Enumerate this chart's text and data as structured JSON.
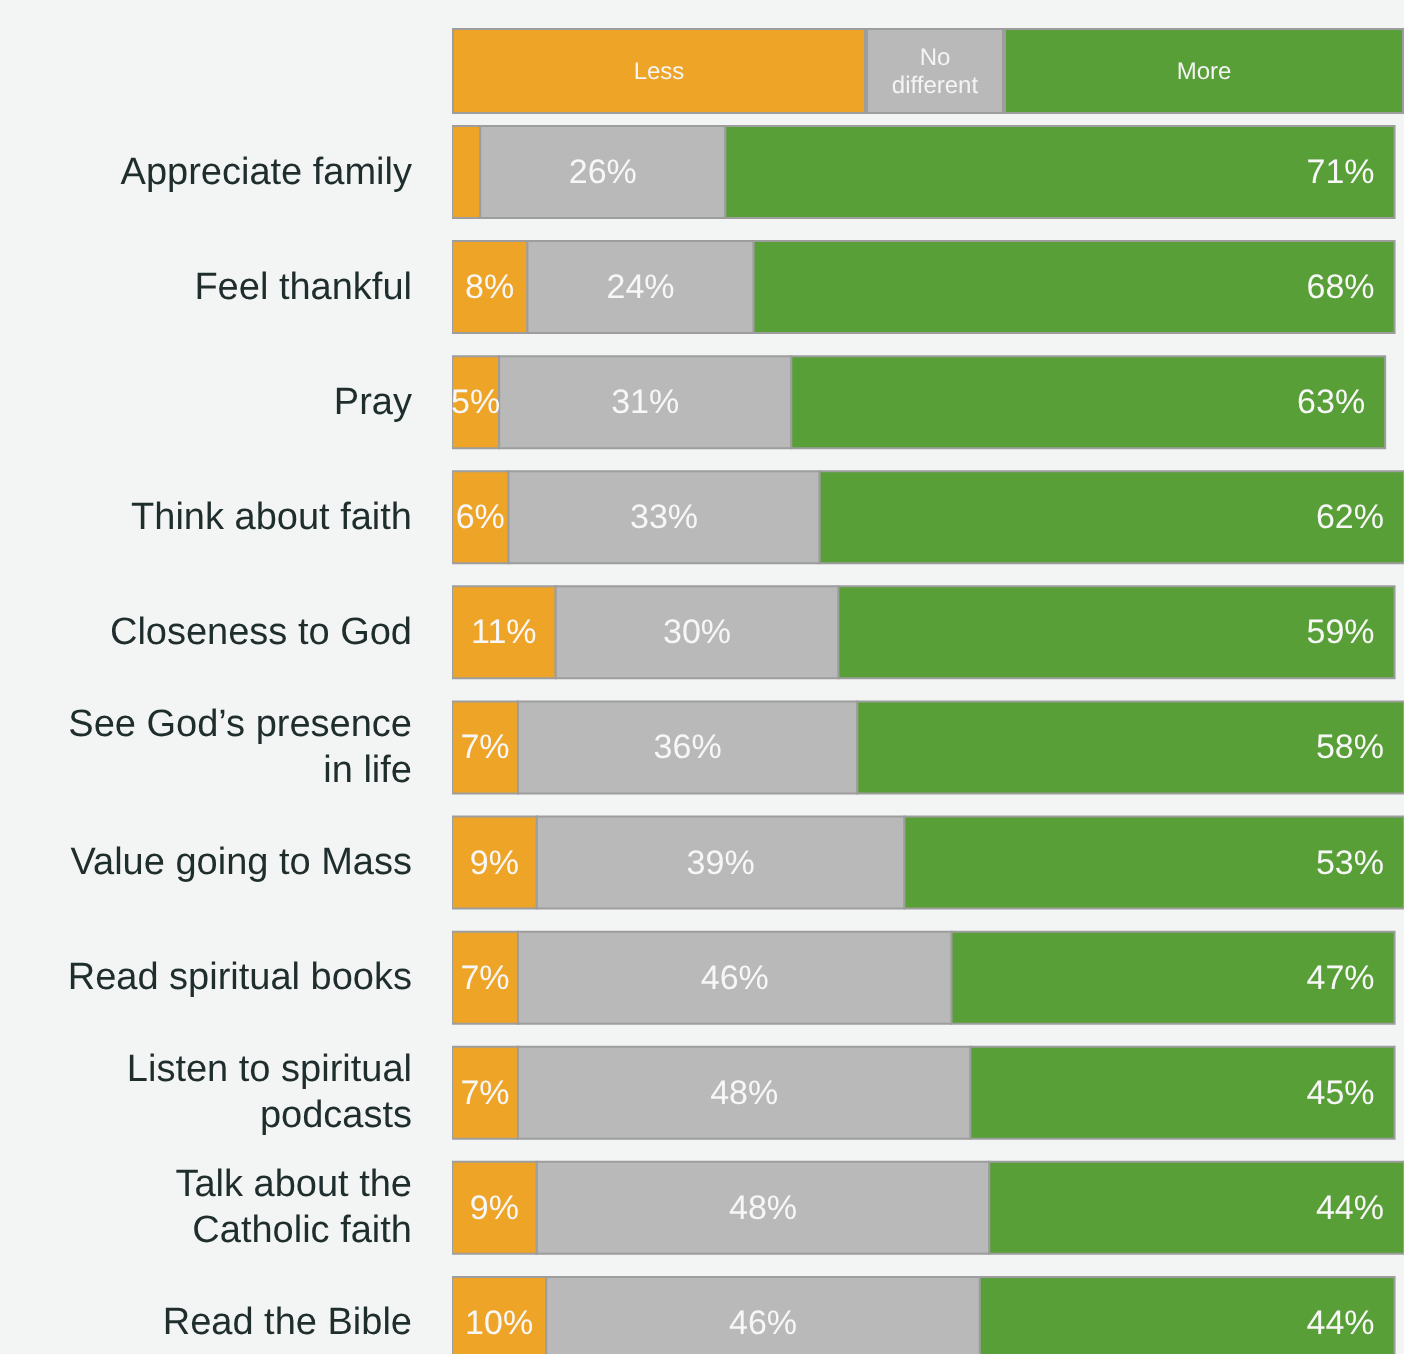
{
  "chart_data": {
    "type": "bar",
    "orientation": "horizontal",
    "stacked": true,
    "legend": "top",
    "xlim": [
      0,
      101
    ],
    "categories": [
      "Appreciate family",
      "Feel thankful",
      "Pray",
      "Think about faith",
      "Closeness to God",
      "See God’s presence in life",
      "Value going to Mass",
      "Read spiritual books",
      "Listen to spiritual podcasts",
      "Talk about the Catholic faith",
      "Read the Bible"
    ],
    "series": [
      {
        "name": "Less",
        "color": "#eea427",
        "values": [
          3,
          8,
          5,
          6,
          11,
          7,
          9,
          7,
          7,
          9,
          10
        ],
        "value_labels": [
          null,
          "8%",
          "5%",
          "6%",
          "11%",
          "7%",
          "9%",
          "7%",
          "7%",
          "9%",
          "10%"
        ]
      },
      {
        "name": "No different",
        "color": "#b8b9b8",
        "values": [
          26,
          24,
          31,
          33,
          30,
          36,
          39,
          46,
          48,
          48,
          46
        ],
        "value_labels": [
          "26%",
          "24%",
          "31%",
          "33%",
          "30%",
          "36%",
          "39%",
          "46%",
          "48%",
          "48%",
          "46%"
        ]
      },
      {
        "name": "More",
        "color": "#579f36",
        "values": [
          71,
          68,
          63,
          62,
          59,
          58,
          53,
          47,
          45,
          44,
          44
        ],
        "value_labels": [
          "71%",
          "68%",
          "63%",
          "62%",
          "59%",
          "58%",
          "53%",
          "47%",
          "45%",
          "44%",
          "44%"
        ]
      }
    ]
  }
}
